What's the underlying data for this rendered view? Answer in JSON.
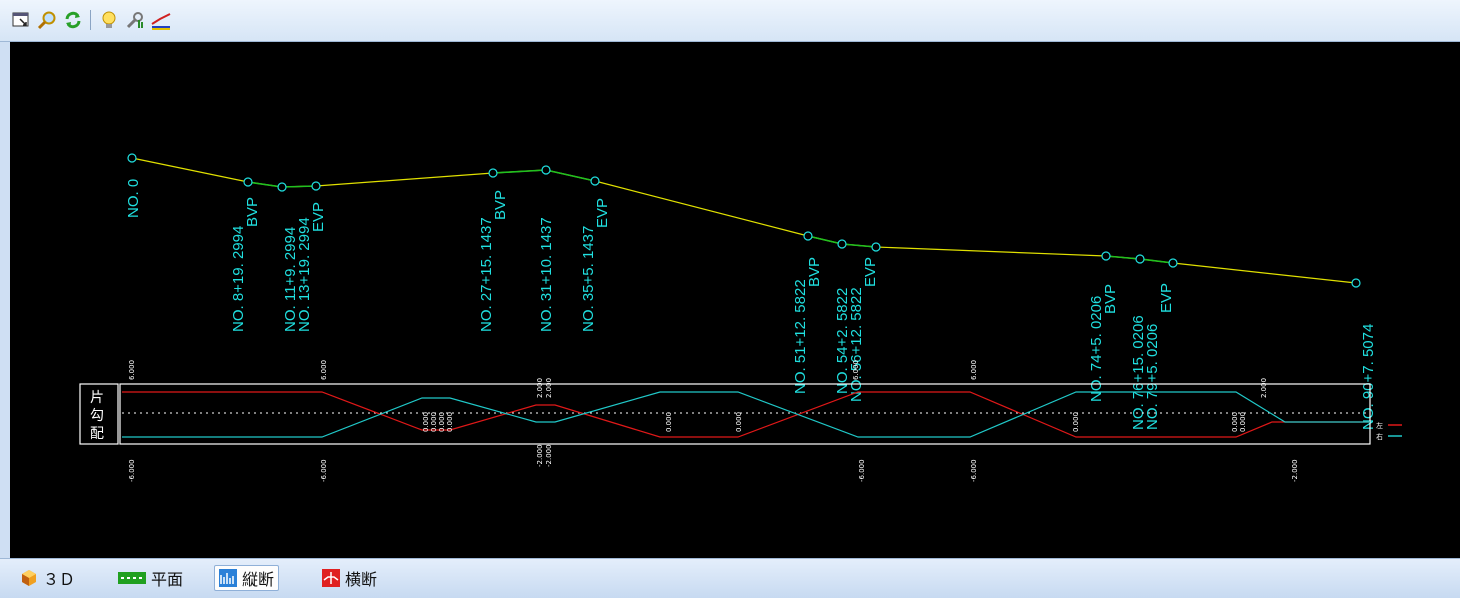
{
  "toolbar": {
    "icons": [
      "select-window-icon",
      "zoom-icon",
      "refresh-icon",
      "lightbulb-icon",
      "settings-icon",
      "profile-line-icon"
    ]
  },
  "profile": {
    "station_labels": [
      {
        "text": "NO. 0"
      },
      {
        "text": "NO. 8+19. 2994"
      },
      {
        "text": "BVP"
      },
      {
        "text": "NO. 11+9. 2994"
      },
      {
        "text": "NO. 13+19. 2994"
      },
      {
        "text": "EVP"
      },
      {
        "text": "NO. 27+15. 1437"
      },
      {
        "text": "BVP"
      },
      {
        "text": "NO. 31+10. 1437"
      },
      {
        "text": "NO. 35+5. 1437"
      },
      {
        "text": "EVP"
      },
      {
        "text": "NO. 51+12. 5822"
      },
      {
        "text": "BVP"
      },
      {
        "text": "NO. 54+2. 5822"
      },
      {
        "text": "NO. 56+12. 5822"
      },
      {
        "text": "EVP"
      },
      {
        "text": "NO. 74+5. 0206"
      },
      {
        "text": "BVP"
      },
      {
        "text": "NO. 76+15. 0206"
      },
      {
        "text": "NO. 79+5. 0206"
      },
      {
        "text": "EVP"
      },
      {
        "text": "NO. 90+7. 5074"
      }
    ]
  },
  "superelevation": {
    "label_chars": [
      "片",
      "勾",
      "配"
    ],
    "value_labels_top": [
      {
        "text": "6.000"
      },
      {
        "text": "6.000"
      },
      {
        "text": "6.000"
      },
      {
        "text": "2.000"
      },
      {
        "text": "2.000"
      },
      {
        "text": "6.000"
      },
      {
        "text": "2.000"
      }
    ],
    "value_labels_bottom": [
      {
        "text": "-6.000"
      },
      {
        "text": "-6.000"
      },
      {
        "text": "-2.000"
      },
      {
        "text": "-2.000"
      },
      {
        "text": "-6.000"
      },
      {
        "text": "-6.000"
      },
      {
        "text": "-2.000"
      }
    ],
    "mid_labels": [
      {
        "text": "0.000"
      },
      {
        "text": "0.000"
      },
      {
        "text": "0.000"
      },
      {
        "text": "0.000"
      },
      {
        "text": "0.000"
      },
      {
        "text": "0.000"
      },
      {
        "text": "0.000"
      },
      {
        "text": "0.000"
      },
      {
        "text": "0.000"
      }
    ],
    "legend": [
      {
        "text": "左",
        "color": "#ff2020"
      },
      {
        "text": "右",
        "color": "#20d0d0"
      }
    ]
  },
  "colors": {
    "profile_line": "#e0e000",
    "curve_segment": "#20c020",
    "labels": "#20e0e0",
    "left_line": "#e01818",
    "right_line": "#20c8c8"
  },
  "tabs": [
    {
      "label": "３Ｄ",
      "icon": "cube-icon"
    },
    {
      "label": "平面",
      "icon": "plan-icon"
    },
    {
      "label": "縦断",
      "icon": "profile-icon"
    },
    {
      "label": "横断",
      "icon": "cross-section-icon"
    }
  ]
}
